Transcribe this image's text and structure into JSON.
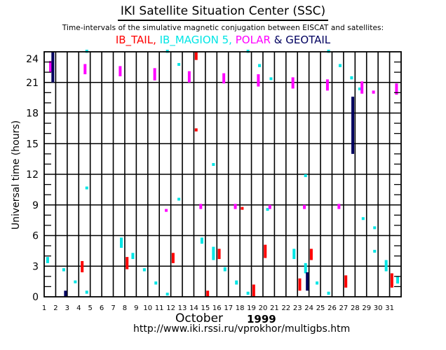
{
  "header": {
    "title": "IKI Satellite Situation Center (SSC)",
    "subtitle": "Time-intervals of the simulative magnetic conjugation between EISCAT and satellites:"
  },
  "footer": {
    "month": "October",
    "year": "1999",
    "url": "http://www.iki.rssi.ru/vprokhor/multigbs.htm"
  },
  "chart_data": {
    "type": "scatter",
    "title": "Time-intervals of the simulative magnetic conjugation between EISCAT and satellites",
    "xlabel": "October 1999",
    "ylabel": "Universal time (hours)",
    "xlim": [
      1,
      32
    ],
    "ylim": [
      0,
      24
    ],
    "grid": true,
    "legend_placement": "top",
    "x_ticks": [
      "1",
      "2",
      "3",
      "4",
      "5",
      "6",
      "7",
      "8",
      "9",
      "10",
      "11",
      "12",
      "13",
      "14",
      "15",
      "16",
      "17",
      "18",
      "19",
      "20",
      "21",
      "22",
      "23",
      "24",
      "25",
      "26",
      "27",
      "28",
      "29",
      "30",
      "31"
    ],
    "y_ticks": [
      "0",
      "3",
      "6",
      "9",
      "12",
      "15",
      "18",
      "21",
      "24"
    ],
    "legend": [
      {
        "name": "IB_TAIL",
        "label": "IB_TAIL,",
        "color": "#ff0000"
      },
      {
        "name": "IB_MAGION 5",
        "label": "IB_MAGION 5,",
        "color": "#00e5e5"
      },
      {
        "name": "POLAR",
        "label": "POLAR",
        "color": "#ff00ff"
      },
      {
        "name": "GEOTAIL",
        "label": "& GEOTAIL",
        "color": "#00005f"
      }
    ],
    "series": [
      {
        "name": "IB_TAIL",
        "color": "#ff0000",
        "intervals": [
          {
            "day": 4.3,
            "start": 2.4,
            "end": 3.5
          },
          {
            "day": 8.2,
            "start": 2.7,
            "end": 3.9
          },
          {
            "day": 12.2,
            "start": 3.3,
            "end": 4.3
          },
          {
            "day": 14.2,
            "start": 23.2,
            "end": 24.0
          },
          {
            "day": 14.2,
            "start": 16.2,
            "end": 16.5
          },
          {
            "day": 15.2,
            "start": 0.0,
            "end": 0.6
          },
          {
            "day": 16.2,
            "start": 3.7,
            "end": 4.7
          },
          {
            "day": 18.2,
            "start": 8.6,
            "end": 8.8
          },
          {
            "day": 19.2,
            "start": 0.0,
            "end": 1.2
          },
          {
            "day": 20.2,
            "start": 3.8,
            "end": 5.1
          },
          {
            "day": 23.2,
            "start": 0.6,
            "end": 1.8
          },
          {
            "day": 24.2,
            "start": 3.6,
            "end": 4.7
          },
          {
            "day": 27.2,
            "start": 0.9,
            "end": 2.1
          },
          {
            "day": 31.2,
            "start": 0.9,
            "end": 2.3
          }
        ]
      },
      {
        "name": "IB_MAGION 5",
        "color": "#00e5e5",
        "intervals": [
          {
            "day": 1.3,
            "start": 3.3,
            "end": 3.9
          },
          {
            "day": 2.7,
            "start": 2.5,
            "end": 2.8
          },
          {
            "day": 3.7,
            "start": 1.5,
            "end": 1.6
          },
          {
            "day": 4.7,
            "start": 0.3,
            "end": 0.6
          },
          {
            "day": 4.7,
            "start": 10.7,
            "end": 10.8
          },
          {
            "day": 4.7,
            "start": 23.9,
            "end": 24.2
          },
          {
            "day": 7.7,
            "start": 4.8,
            "end": 5.8
          },
          {
            "day": 8.7,
            "start": 3.7,
            "end": 4.3
          },
          {
            "day": 9.7,
            "start": 2.5,
            "end": 2.8
          },
          {
            "day": 10.7,
            "start": 1.2,
            "end": 1.5
          },
          {
            "day": 11.7,
            "start": 0.2,
            "end": 0.4
          },
          {
            "day": 11.7,
            "start": 23.9,
            "end": 24.2
          },
          {
            "day": 12.7,
            "start": 9.6,
            "end": 9.7
          },
          {
            "day": 12.7,
            "start": 22.8,
            "end": 22.9
          },
          {
            "day": 14.7,
            "start": 5.2,
            "end": 5.8
          },
          {
            "day": 15.7,
            "start": 3.6,
            "end": 4.9
          },
          {
            "day": 15.7,
            "start": 13.0,
            "end": 13.1
          },
          {
            "day": 16.7,
            "start": 2.5,
            "end": 2.9
          },
          {
            "day": 17.7,
            "start": 1.2,
            "end": 1.6
          },
          {
            "day": 18.7,
            "start": 0.2,
            "end": 0.5
          },
          {
            "day": 18.7,
            "start": 23.9,
            "end": 24.2
          },
          {
            "day": 19.7,
            "start": 22.5,
            "end": 22.8
          },
          {
            "day": 20.4,
            "start": 8.6,
            "end": 8.7
          },
          {
            "day": 20.7,
            "start": 21.4,
            "end": 21.5
          },
          {
            "day": 22.7,
            "start": 3.7,
            "end": 4.7
          },
          {
            "day": 23.7,
            "start": 2.3,
            "end": 3.3
          },
          {
            "day": 23.7,
            "start": 11.9,
            "end": 12.0
          },
          {
            "day": 24.7,
            "start": 1.2,
            "end": 1.5
          },
          {
            "day": 25.7,
            "start": 0.2,
            "end": 0.5
          },
          {
            "day": 25.7,
            "start": 23.9,
            "end": 24.2
          },
          {
            "day": 26.7,
            "start": 22.5,
            "end": 22.8
          },
          {
            "day": 27.7,
            "start": 21.3,
            "end": 21.6
          },
          {
            "day": 28.4,
            "start": 20.4,
            "end": 20.5
          },
          {
            "day": 28.7,
            "start": 7.7,
            "end": 7.8
          },
          {
            "day": 29.7,
            "start": 6.8,
            "end": 6.9
          },
          {
            "day": 29.7,
            "start": 4.5,
            "end": 4.6
          },
          {
            "day": 30.7,
            "start": 2.5,
            "end": 3.6
          },
          {
            "day": 31.7,
            "start": 1.3,
            "end": 2.0
          }
        ]
      },
      {
        "name": "POLAR",
        "color": "#ff00ff",
        "intervals": [
          {
            "day": 1.55,
            "start": 22.0,
            "end": 23.1
          },
          {
            "day": 4.55,
            "start": 21.8,
            "end": 22.8
          },
          {
            "day": 7.6,
            "start": 21.6,
            "end": 22.6
          },
          {
            "day": 10.6,
            "start": 21.2,
            "end": 22.4
          },
          {
            "day": 11.6,
            "start": 8.5,
            "end": 8.6
          },
          {
            "day": 13.6,
            "start": 21.0,
            "end": 22.1
          },
          {
            "day": 14.6,
            "start": 8.6,
            "end": 9.1
          },
          {
            "day": 16.6,
            "start": 20.9,
            "end": 21.9
          },
          {
            "day": 17.6,
            "start": 8.6,
            "end": 9.1
          },
          {
            "day": 19.6,
            "start": 20.6,
            "end": 21.8
          },
          {
            "day": 20.6,
            "start": 8.6,
            "end": 9.0
          },
          {
            "day": 22.6,
            "start": 20.4,
            "end": 21.5
          },
          {
            "day": 23.6,
            "start": 8.6,
            "end": 9.0
          },
          {
            "day": 25.6,
            "start": 20.2,
            "end": 21.3
          },
          {
            "day": 26.6,
            "start": 8.6,
            "end": 9.1
          },
          {
            "day": 28.6,
            "start": 19.9,
            "end": 21.1
          },
          {
            "day": 29.6,
            "start": 19.9,
            "end": 20.2
          },
          {
            "day": 31.6,
            "start": 19.8,
            "end": 20.9
          }
        ]
      },
      {
        "name": "GEOTAIL",
        "color": "#00005f",
        "intervals": [
          {
            "day": 1.75,
            "start": 21.0,
            "end": 24.0
          },
          {
            "day": 2.85,
            "start": 0.0,
            "end": 0.6
          },
          {
            "day": 23.85,
            "start": 0.6,
            "end": 2.4
          },
          {
            "day": 27.8,
            "start": 14.0,
            "end": 19.6
          }
        ]
      }
    ]
  }
}
